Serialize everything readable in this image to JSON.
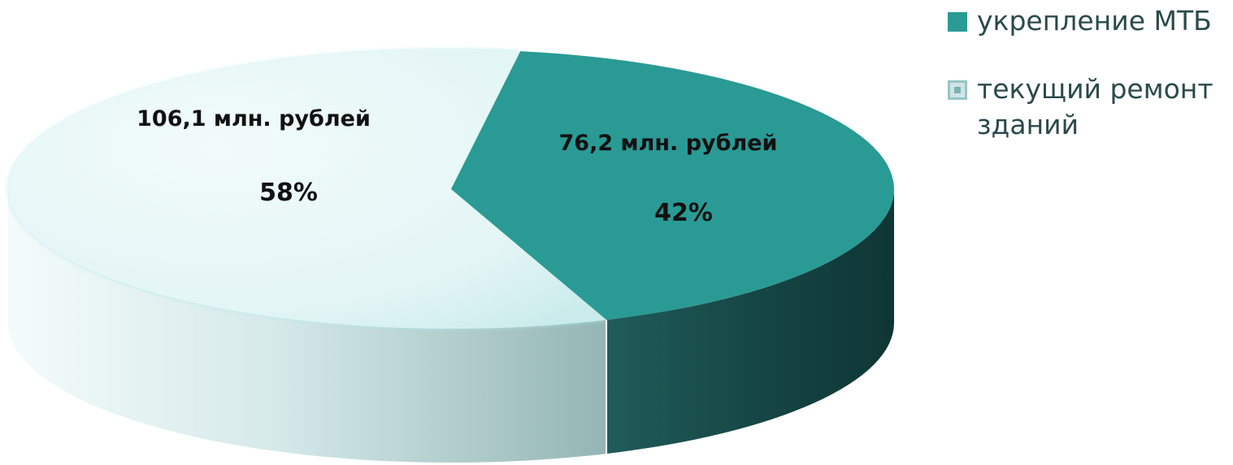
{
  "chart_data": {
    "type": "pie",
    "title": "",
    "slices": [
      {
        "name": "текущий ремонт зданий",
        "value": 106.1,
        "value_label": "106,1 млн. рублей",
        "percent": 58,
        "percent_label": "58%",
        "color": "#e2f5f5"
      },
      {
        "name": "укрепление МТБ",
        "value": 76.2,
        "value_label": "76,2 млн. рублей",
        "percent": 42,
        "percent_label": "42%",
        "color": "#2a9a95"
      }
    ],
    "legend": {
      "placement": "top-right",
      "items": [
        {
          "label": "укрепление МТБ",
          "color": "#2a9a95"
        },
        {
          "label": "текущий ремонт зданий",
          "color": "#cfe3e3"
        }
      ]
    },
    "style": "3d-tilted"
  }
}
